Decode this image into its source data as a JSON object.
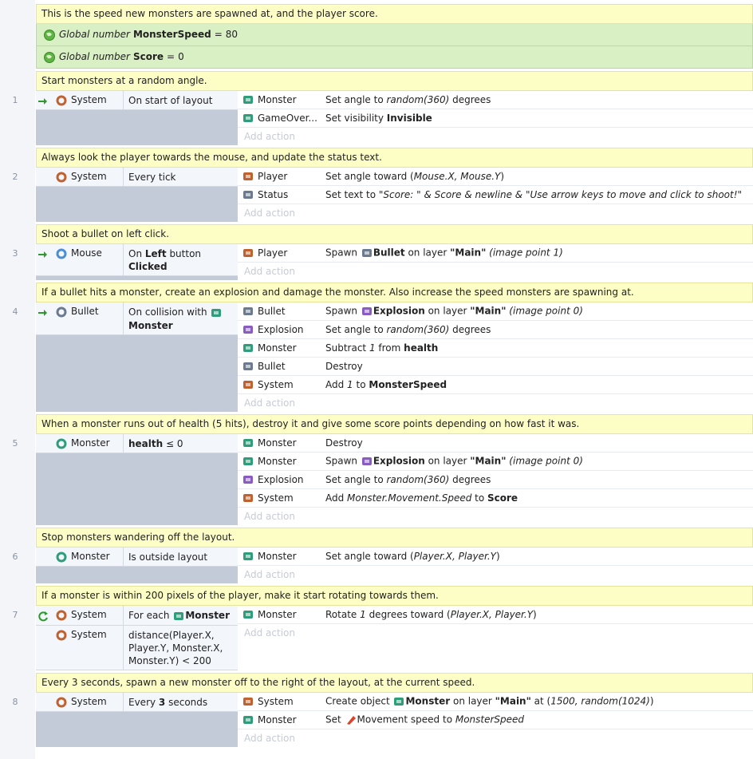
{
  "sections": [
    {
      "comment": "This is the speed new monsters are spawned at, and the player score.",
      "globals": [
        {
          "type": "Global number",
          "name": "MonsterSpeed",
          "op": "=",
          "value": 80
        },
        {
          "type": "Global number",
          "name": "Score",
          "op": "=",
          "value": 0
        }
      ]
    },
    {
      "comment": "Start monsters at a random angle.",
      "event": {
        "number": 1,
        "conditions": [
          {
            "trigger": true,
            "object": "System",
            "text": [
              {
                "t": "On start of layout"
              }
            ]
          }
        ],
        "actions": [
          {
            "object": "Monster",
            "text": [
              {
                "t": "Set angle to "
              },
              {
                "i": "random(360)"
              },
              {
                "t": " degrees"
              }
            ]
          },
          {
            "object": "GameOver...",
            "text": [
              {
                "t": "Set visibility "
              },
              {
                "b": "Invisible"
              }
            ]
          }
        ],
        "add_action": "Add action"
      }
    },
    {
      "comment": "Always look the player towards the mouse, and update the status text.",
      "event": {
        "number": 2,
        "conditions": [
          {
            "object": "System",
            "text": [
              {
                "t": "Every tick"
              }
            ]
          }
        ],
        "actions": [
          {
            "object": "Player",
            "text": [
              {
                "t": "Set angle toward ("
              },
              {
                "i": "Mouse.X, Mouse.Y"
              },
              {
                "t": ")"
              }
            ]
          },
          {
            "object": "Status",
            "text": [
              {
                "t": "Set text to "
              },
              {
                "i": "\"Score: \" & Score & newline & \"Use arrow keys to move and click to shoot!\""
              }
            ]
          }
        ],
        "add_action": "Add action"
      }
    },
    {
      "comment": "Shoot a bullet on left click.",
      "event": {
        "number": 3,
        "conditions": [
          {
            "trigger": true,
            "object": "Mouse",
            "text": [
              {
                "t": "On "
              },
              {
                "b": "Left"
              },
              {
                "t": " button "
              },
              {
                "b": "Clicked"
              }
            ]
          }
        ],
        "actions": [
          {
            "object": "Player",
            "text": [
              {
                "t": "Spawn "
              },
              {
                "o": "Bullet"
              },
              {
                "t": " on layer "
              },
              {
                "b": "\"Main\""
              },
              {
                "t": " "
              },
              {
                "i": "(image point 1)"
              }
            ]
          }
        ],
        "add_action": "Add action"
      }
    },
    {
      "comment": "If a bullet hits a monster, create an explosion and damage the monster.  Also increase the speed monsters are spawning at.",
      "event": {
        "number": 4,
        "conditions": [
          {
            "trigger": true,
            "object": "Bullet",
            "text": [
              {
                "t": "On collision with "
              },
              {
                "o": "Monster"
              }
            ]
          }
        ],
        "actions": [
          {
            "object": "Bullet",
            "text": [
              {
                "t": "Spawn "
              },
              {
                "o": "Explosion"
              },
              {
                "t": " on layer "
              },
              {
                "b": "\"Main\""
              },
              {
                "t": " "
              },
              {
                "i": "(image point 0)"
              }
            ]
          },
          {
            "object": "Explosion",
            "text": [
              {
                "t": "Set angle to "
              },
              {
                "i": "random(360)"
              },
              {
                "t": " degrees"
              }
            ]
          },
          {
            "object": "Monster",
            "text": [
              {
                "t": "Subtract "
              },
              {
                "i": "1"
              },
              {
                "t": " from "
              },
              {
                "b": "health"
              }
            ]
          },
          {
            "object": "Bullet",
            "text": [
              {
                "t": "Destroy"
              }
            ]
          },
          {
            "object": "System",
            "text": [
              {
                "t": "Add "
              },
              {
                "i": "1"
              },
              {
                "t": " to "
              },
              {
                "b": "MonsterSpeed"
              }
            ]
          }
        ],
        "add_action": "Add action"
      }
    },
    {
      "comment": "When a monster runs out of health (5 hits), destroy it and give some score points depending on how fast it was.",
      "event": {
        "number": 5,
        "conditions": [
          {
            "object": "Monster",
            "text": [
              {
                "b": "health"
              },
              {
                "t": " ≤ 0"
              }
            ]
          }
        ],
        "actions": [
          {
            "object": "Monster",
            "text": [
              {
                "t": "Destroy"
              }
            ]
          },
          {
            "object": "Monster",
            "text": [
              {
                "t": "Spawn "
              },
              {
                "o": "Explosion"
              },
              {
                "t": " on layer "
              },
              {
                "b": "\"Main\""
              },
              {
                "t": " "
              },
              {
                "i": "(image point 0)"
              }
            ]
          },
          {
            "object": "Explosion",
            "text": [
              {
                "t": "Set angle to "
              },
              {
                "i": "random(360)"
              },
              {
                "t": " degrees"
              }
            ]
          },
          {
            "object": "System",
            "text": [
              {
                "t": "Add "
              },
              {
                "i": "Monster.Movement.Speed"
              },
              {
                "t": " to "
              },
              {
                "b": "Score"
              }
            ]
          }
        ],
        "add_action": "Add action"
      }
    },
    {
      "comment": "Stop monsters wandering off the layout.",
      "event": {
        "number": 6,
        "conditions": [
          {
            "object": "Monster",
            "text": [
              {
                "t": "Is outside layout"
              }
            ]
          }
        ],
        "actions": [
          {
            "object": "Monster",
            "text": [
              {
                "t": "Set angle toward ("
              },
              {
                "i": "Player.X, Player.Y"
              },
              {
                "t": ")"
              }
            ]
          }
        ],
        "add_action": "Add action"
      }
    },
    {
      "comment": "If a monster is within 200 pixels of the player, make it start rotating towards them.",
      "event": {
        "number": 7,
        "conditions": [
          {
            "loop": true,
            "object": "System",
            "text": [
              {
                "t": "For each "
              },
              {
                "o": "Monster"
              }
            ]
          },
          {
            "object": "System",
            "text": [
              {
                "t": "distance(Player.X, Player.Y, Monster.X, Monster.Y) < 200"
              }
            ]
          }
        ],
        "actions": [
          {
            "object": "Monster",
            "text": [
              {
                "t": "Rotate "
              },
              {
                "i": "1"
              },
              {
                "t": " degrees toward ("
              },
              {
                "i": "Player.X, Player.Y"
              },
              {
                "t": ")"
              }
            ]
          }
        ],
        "add_action": "Add action"
      }
    },
    {
      "comment": "Every 3 seconds, spawn a new monster off to the right of the layout, at the current speed.",
      "event": {
        "number": 8,
        "conditions": [
          {
            "object": "System",
            "text": [
              {
                "t": "Every "
              },
              {
                "b": "3"
              },
              {
                "t": " seconds"
              }
            ]
          }
        ],
        "actions": [
          {
            "object": "System",
            "text": [
              {
                "t": "Create object "
              },
              {
                "o": "Monster"
              },
              {
                "t": " on layer "
              },
              {
                "b": "\"Main\""
              },
              {
                "t": " at ("
              },
              {
                "i": "1500, random(1024)"
              },
              {
                "t": ")"
              }
            ]
          },
          {
            "object": "Monster",
            "text": [
              {
                "t": "Set "
              },
              {
                "beh": "Movement speed"
              },
              {
                "t": " to "
              },
              {
                "i": "MonsterSpeed"
              }
            ]
          }
        ],
        "add_action": "Add action"
      }
    }
  ]
}
